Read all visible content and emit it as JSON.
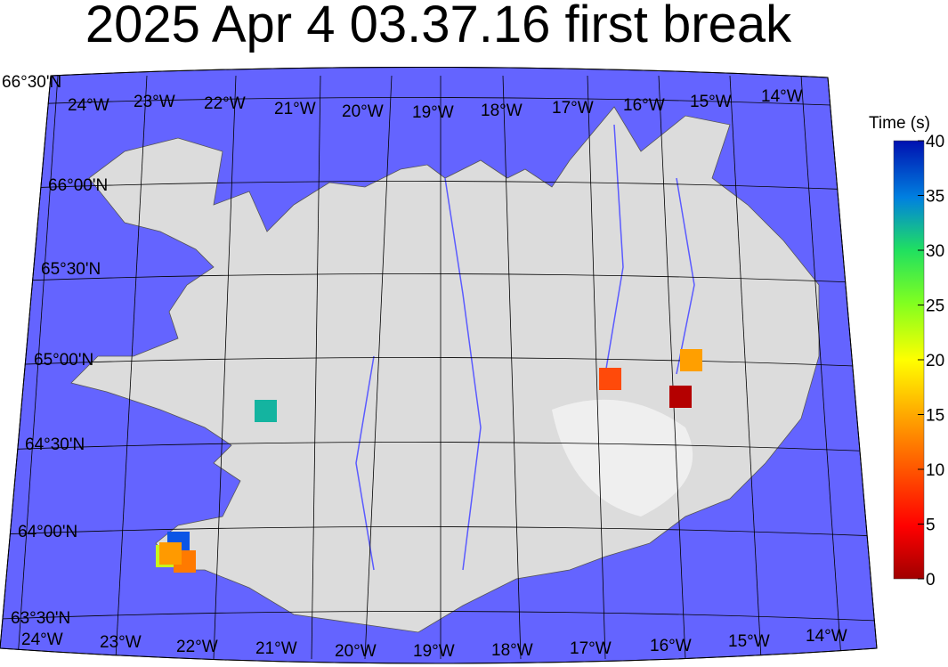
{
  "title": "2025 Apr 4 03.37.16 first break",
  "colors": {
    "ocean": "#6464ff",
    "land": "#d9d9d9",
    "rivers": "#5a5aff",
    "grid": "#000000"
  },
  "map": {
    "top_lon_labels": [
      "24°W",
      "23°W",
      "22°W",
      "21°W",
      "20°W",
      "19°W",
      "18°W",
      "17°W",
      "16°W",
      "15°W",
      "14°W"
    ],
    "bottom_lon_labels": [
      "24°W",
      "23°W",
      "22°W",
      "21°W",
      "20°W",
      "19°W",
      "18°W",
      "17°W",
      "16°W",
      "15°W",
      "14°W"
    ],
    "lat_labels": [
      "66°30'N",
      "66°00'N",
      "65°30'N",
      "65°00'N",
      "64°30'N",
      "64°00'N",
      "63°30'N"
    ]
  },
  "colorbar": {
    "label": "Time (s)",
    "range": [
      0,
      40
    ],
    "colormap": "jet-reversed",
    "ticks": [
      "0",
      "5",
      "10",
      "15",
      "20",
      "25",
      "30",
      "35",
      "40"
    ]
  },
  "stations": [
    {
      "time_s": 37,
      "color": "#0a55e6"
    },
    {
      "time_s": 23,
      "color": "#c8f51e"
    },
    {
      "time_s": 14,
      "color": "#ff9a00"
    },
    {
      "time_s": 11,
      "color": "#ff7a00"
    },
    {
      "time_s": 32,
      "color": "#14b4a0"
    },
    {
      "time_s": 8,
      "color": "#ff4a0a"
    },
    {
      "time_s": 14,
      "color": "#ff9f00"
    },
    {
      "time_s": 1,
      "color": "#b40000"
    }
  ]
}
